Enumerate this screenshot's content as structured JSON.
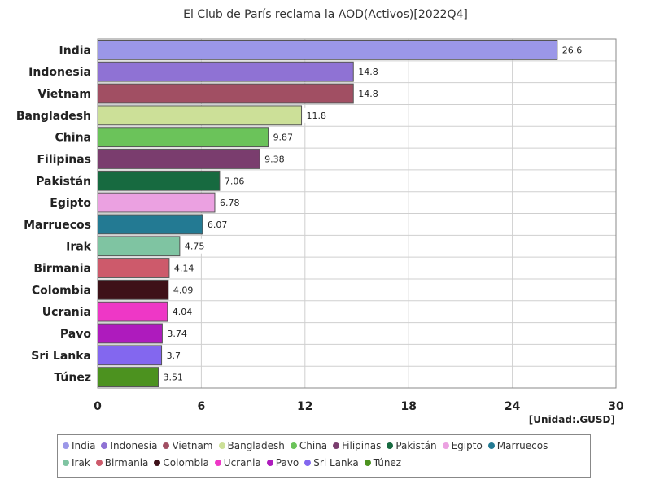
{
  "chart_data": {
    "type": "bar",
    "orientation": "horizontal",
    "title": "El Club de París reclama la AOD(Activos)[2022Q4]",
    "unit_label": "[Unidad:.GUSD]",
    "xlim": [
      0,
      30
    ],
    "x_ticks": [
      "0",
      "6",
      "12",
      "18",
      "24",
      "30"
    ],
    "grid": true,
    "legend_position": "bottom",
    "categories": [
      "India",
      "Indonesia",
      "Vietnam",
      "Bangladesh",
      "China",
      "Filipinas",
      "Pakistán",
      "Egipto",
      "Marruecos",
      "Irak",
      "Birmania",
      "Colombia",
      "Ucrania",
      "Pavo",
      "Sri Lanka",
      "Túnez"
    ],
    "values": [
      26.6,
      14.8,
      14.8,
      11.8,
      9.87,
      9.38,
      7.06,
      6.78,
      6.07,
      4.75,
      4.14,
      4.09,
      4.04,
      3.74,
      3.7,
      3.51
    ],
    "value_labels": [
      "26.6",
      "14.8",
      "14.8",
      "11.8",
      "9.87",
      "9.38",
      "7.06",
      "6.78",
      "6.07",
      "4.75",
      "4.14",
      "4.09",
      "4.04",
      "3.74",
      "3.7",
      "3.51"
    ],
    "colors": [
      "#9b97e8",
      "#8f72d4",
      "#a14f63",
      "#cce098",
      "#6bc35a",
      "#7a3d6e",
      "#176a40",
      "#eba1e1",
      "#237a93",
      "#7fc4a2",
      "#cd5a6b",
      "#3e1118",
      "#ee37c6",
      "#ae1bbd",
      "#8367ef",
      "#4c921f"
    ]
  }
}
